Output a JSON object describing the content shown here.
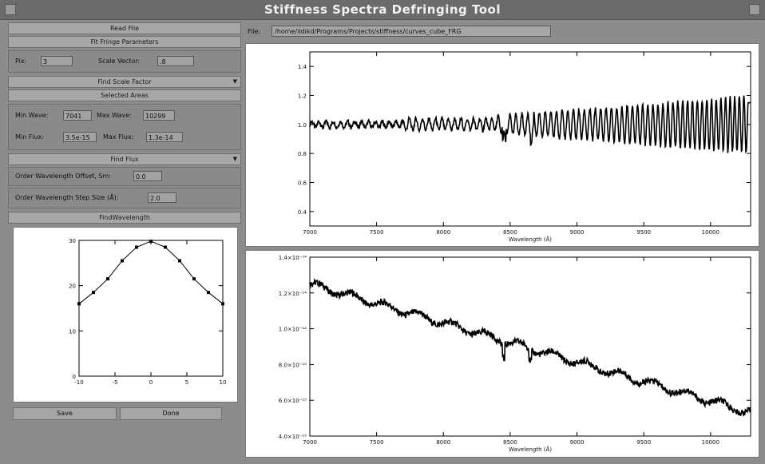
{
  "window": {
    "title": "Stiffness Spectra Defringing Tool"
  },
  "file": {
    "label": "File:",
    "path": "/home/ildikd/Programs/Projects/stiffness/curves_cube_FRG"
  },
  "left_panel": {
    "read_file": "Read File",
    "fit_params": "Fit Fringe Parameters",
    "pix_label": "Pix:",
    "pix_value": "3",
    "scale_label": "Scale Vector:",
    "scale_value": ".8",
    "find_scale": "Find Scale Factor",
    "selected_areas": "Selected Areas",
    "min_wave_label": "Min Wave:",
    "min_wave_value": "7041",
    "max_wave_label": "Max Wave:",
    "max_wave_value": "10299",
    "min_flux_label": "Min Flux:",
    "min_flux_value": "3.5e-15",
    "max_flux_label": "Max Flux:",
    "max_flux_value": "1.3e-14",
    "find_flux": "Find Flux",
    "shift_label": "Order Wavelength Offset, Sm:",
    "shift_value": "0.0",
    "cutoff_label": "Order Wavelength Step Size (Å):",
    "cutoff_value": "2.0",
    "find_wavelength": "FindWavelength",
    "save_label": "Save",
    "done_label": "Done"
  },
  "colors": {
    "panel": "#8a8a8a",
    "button": "#a7a7a7",
    "plot_bg": "#ffffff",
    "trace": "#000000"
  },
  "chart_data": [
    {
      "type": "line",
      "title": "",
      "xlabel": "Wavelength (Å)",
      "ylabel": "",
      "xlim": [
        7000,
        10300
      ],
      "ylim": [
        0.3,
        1.5
      ],
      "xticks": [
        "7000",
        "7500",
        "8000",
        "8500",
        "9000",
        "9500",
        "10000"
      ],
      "yticks": [
        "0.4",
        "0.6",
        "0.8",
        "1.0",
        "1.2",
        "1.4"
      ],
      "description": "fringing-corrected normalized spectrum; flat near 1.0 to ~8400 Å then fringes of growing amplitude"
    },
    {
      "type": "line",
      "title": "",
      "xlabel": "Wavelength (Å)",
      "ylabel": "",
      "xlim": [
        7000,
        10300
      ],
      "ylim": [
        4e-15,
        1.4e-14
      ],
      "xticks": [
        "7000",
        "7500",
        "8000",
        "8500",
        "9000",
        "9500",
        "10000"
      ],
      "yticks": [
        "4.0×10⁻¹⁵",
        "6.0×10⁻¹⁵",
        "8.0×10⁻¹⁵",
        "1.0×10⁻¹⁴",
        "1.2×10⁻¹⁴",
        "1.4×10⁻¹⁴"
      ],
      "description": "flux spectrum declining from ~1.25e-14 at 7000 Å to ~5.3e-15 at 10300 Å"
    },
    {
      "type": "line",
      "title": "",
      "xlabel": "",
      "ylabel": "",
      "xlim": [
        -10,
        10
      ],
      "ylim": [
        0,
        30
      ],
      "xticks": [
        "-10",
        "-5",
        "0",
        "5",
        "10"
      ],
      "yticks": [
        "0",
        "10",
        "20",
        "30"
      ],
      "series": [
        {
          "x": [
            -10,
            -8,
            -6,
            -4,
            -2,
            0,
            2,
            4,
            6,
            8,
            10
          ],
          "y": [
            16.0,
            18.5,
            21.5,
            25.5,
            28.5,
            29.8,
            28.5,
            25.5,
            21.5,
            18.5,
            16.0
          ]
        }
      ]
    }
  ]
}
